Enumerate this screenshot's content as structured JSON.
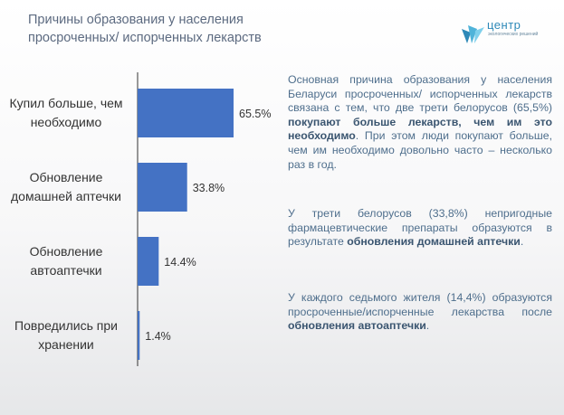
{
  "title": {
    "line1": "Причины образования у населения",
    "line2": "просроченных/ испорченных лекарств"
  },
  "logo": {
    "word": "центр",
    "sub": "экологических решений"
  },
  "colors": {
    "bar": "#4472c4",
    "axis": "#333333",
    "text_blue": "#4e6e8c"
  },
  "chart_data": {
    "type": "bar",
    "orientation": "horizontal",
    "categories": [
      "Купил больше, чем необходимо",
      "Обновление домашней аптечки",
      "Обновление автоаптечки",
      "Повредились при хранении"
    ],
    "category_lines": [
      [
        "Купил больше, чем",
        "необходимо"
      ],
      [
        "Обновление",
        "домашней аптечки"
      ],
      [
        "Обновление",
        "автоаптечки"
      ],
      [
        "Повредились при",
        "хранении"
      ]
    ],
    "values": [
      65.5,
      33.8,
      14.4,
      1.4
    ],
    "value_labels": [
      "65.5%",
      "33.8%",
      "14.4%",
      "1.4%"
    ],
    "xlim": [
      0,
      65.5
    ],
    "grid": false,
    "legend": "none"
  },
  "text": {
    "p1_a": "Основная причина образования у населения Беларуси просроченных/ испорченных лекарств связана с тем, что две трети белорусов (65,5%) ",
    "p1_b": "покупают больше лекарств, чем им это необходимо",
    "p1_c": ". При этом люди покупают больше, чем им необходимо довольно часто – несколько раз в год.",
    "p2_a": "У трети белорусов (33,8%) непригодные фармацевтические препараты образуются в результате ",
    "p2_b": "обновления домашней аптечки",
    "p2_c": ".",
    "p3_a": "У каждого седьмого жителя (14,4%) образуются просроченные/испорченные лекарства после ",
    "p3_b": "обновления автоаптечки",
    "p3_c": "."
  }
}
